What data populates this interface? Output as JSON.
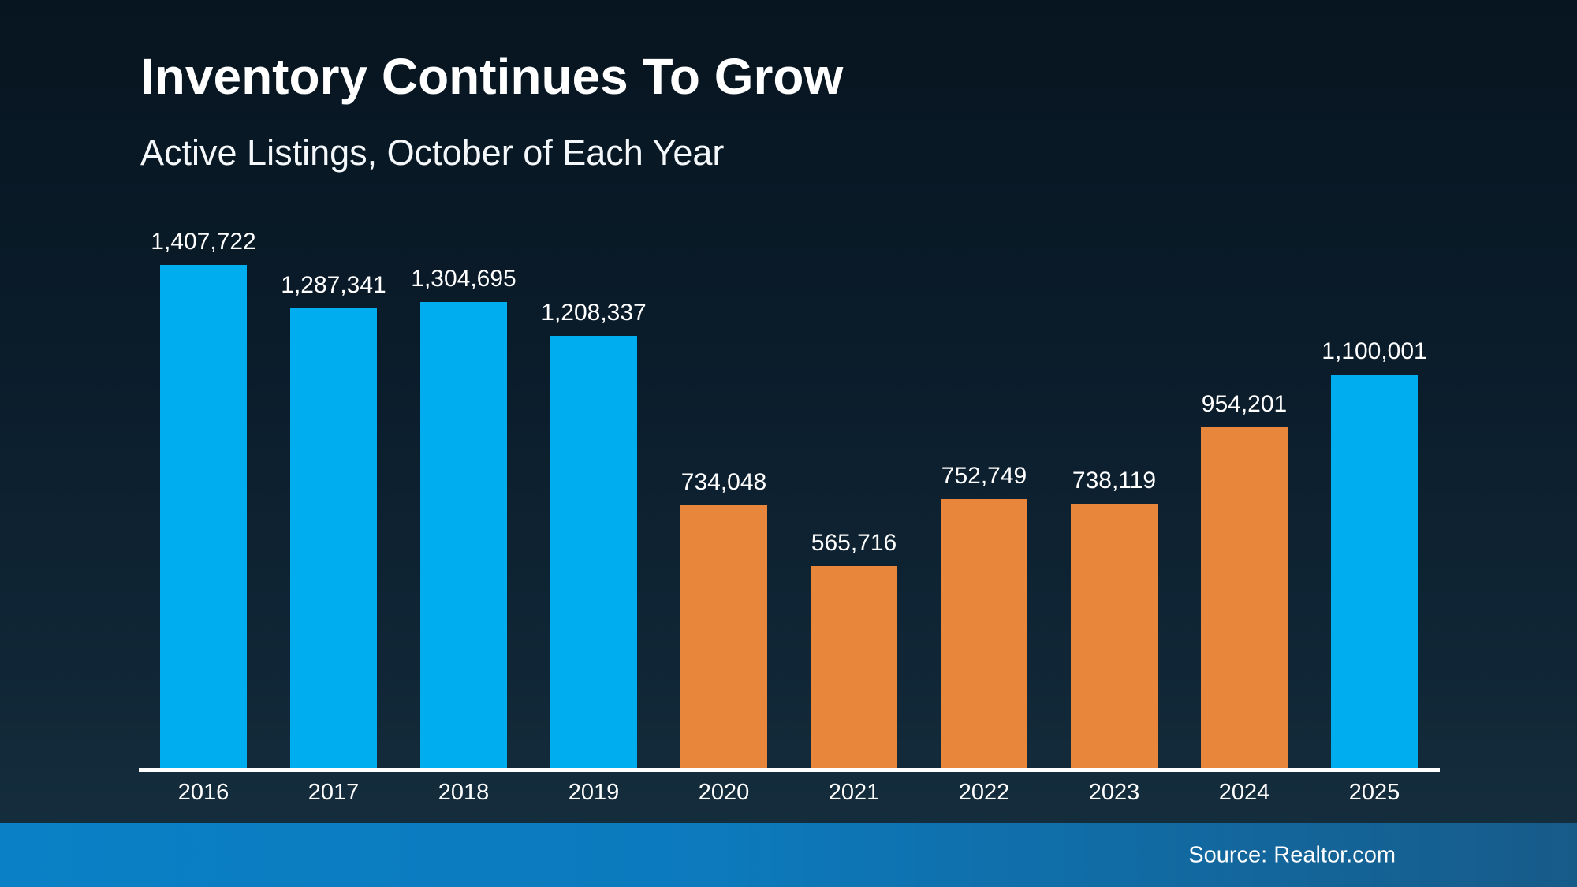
{
  "slide": {
    "title": "Inventory Continues To Grow",
    "subtitle": "Active Listings, October of Each Year",
    "footer": {
      "source_label": "Source: Realtor.com"
    }
  },
  "colors": {
    "background_top": "#071520",
    "background_bottom": "#16303f",
    "bar_blue": "#00AEEF",
    "bar_orange": "#E8873C",
    "axis_line": "#FFFFFF",
    "text": "#FFFFFF",
    "footer_gradient_left": "#0A80C6",
    "footer_gradient_right": "#175B89"
  },
  "chart_data": {
    "type": "bar",
    "title": "Inventory Continues To Grow",
    "subtitle": "Active Listings, October of Each Year",
    "xlabel": "",
    "ylabel": "",
    "grid": false,
    "legend": null,
    "ylim": [
      0,
      1450000
    ],
    "categories": [
      "2016",
      "2017",
      "2018",
      "2019",
      "2020",
      "2021",
      "2022",
      "2023",
      "2024",
      "2025"
    ],
    "values": [
      1407722,
      1287341,
      1304695,
      1208337,
      734048,
      565716,
      752749,
      738119,
      954201,
      1100001
    ],
    "value_labels": [
      "1,407,722",
      "1,287,341",
      "1,304,695",
      "1,208,337",
      "734,048",
      "565,716",
      "752,749",
      "738,119",
      "954,201",
      "1,100,001"
    ],
    "bar_colors": [
      "#00AEEF",
      "#00AEEF",
      "#00AEEF",
      "#00AEEF",
      "#E8873C",
      "#E8873C",
      "#E8873C",
      "#E8873C",
      "#E8873C",
      "#00AEEF"
    ]
  }
}
